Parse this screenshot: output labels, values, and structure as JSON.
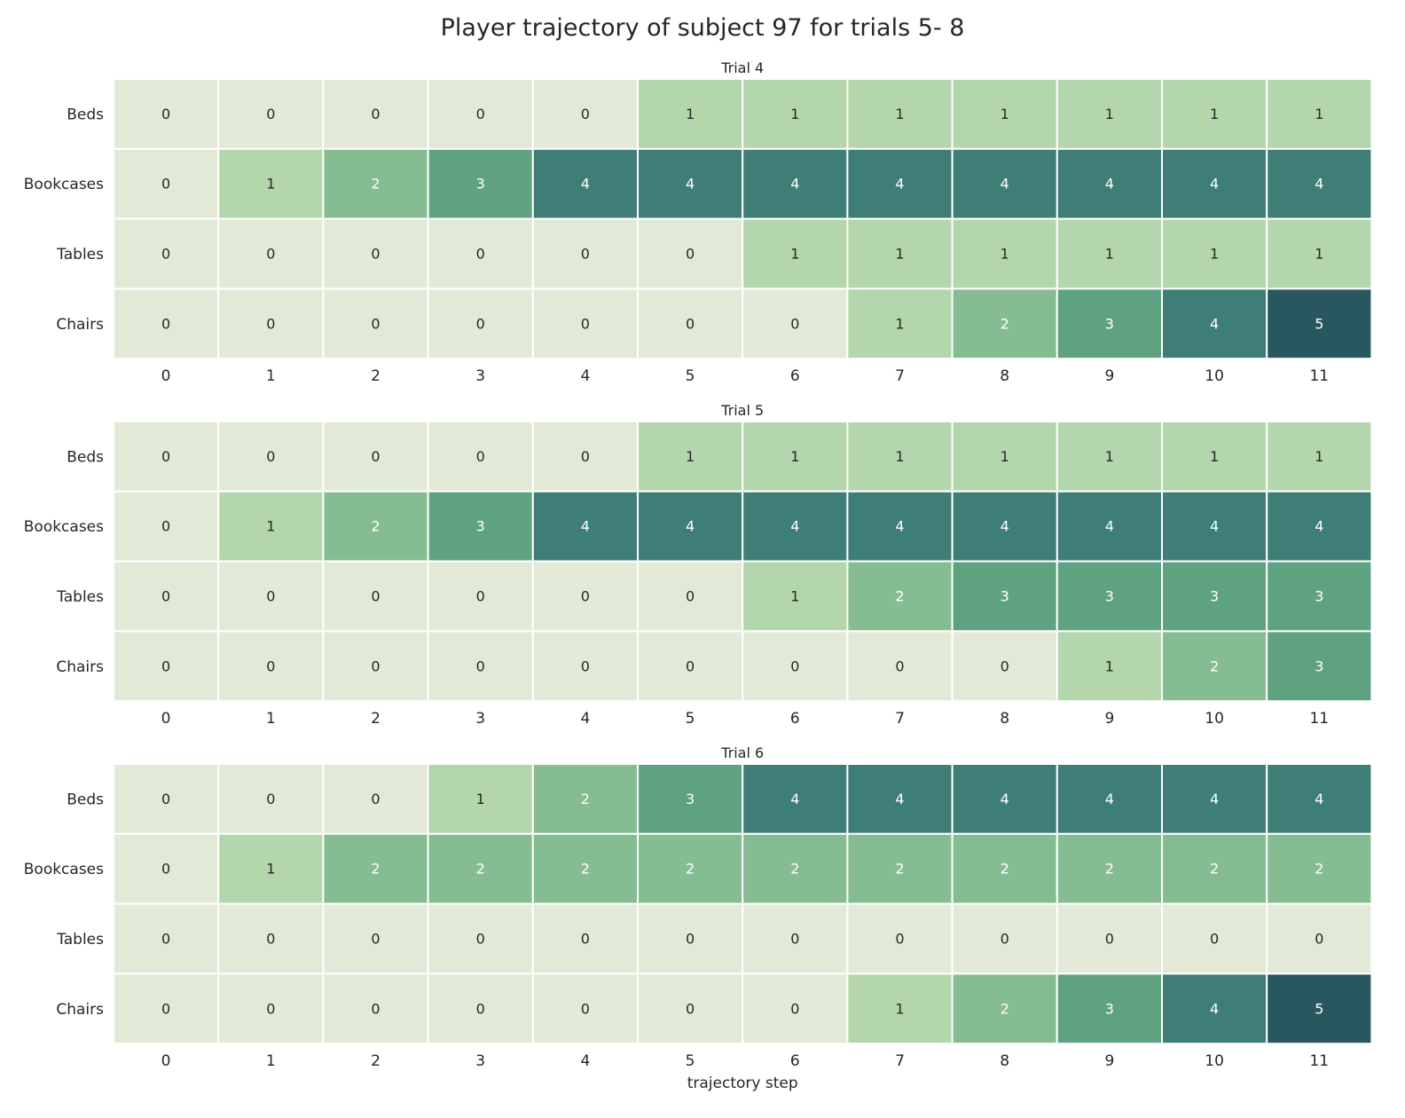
{
  "title": "Player trajectory of subject 97 for trials 5- 8",
  "colors": {
    "scale": [
      "#e2ead7",
      "#b4d6ac",
      "#86bc91",
      "#5ea282",
      "#3f7e77",
      "#29575f"
    ],
    "cell_border": "#ffffff",
    "text_dark": "#262626",
    "text_light": "#ffffff"
  },
  "chart_data": [
    {
      "type": "heatmap",
      "title": "Trial 4",
      "rows": [
        "Beds",
        "Bookcases",
        "Tables",
        "Chairs"
      ],
      "columns": [
        "0",
        "1",
        "2",
        "3",
        "4",
        "5",
        "6",
        "7",
        "8",
        "9",
        "10",
        "11"
      ],
      "values": [
        [
          0,
          0,
          0,
          0,
          0,
          1,
          1,
          1,
          1,
          1,
          1,
          1
        ],
        [
          0,
          1,
          2,
          3,
          4,
          4,
          4,
          4,
          4,
          4,
          4,
          4
        ],
        [
          0,
          0,
          0,
          0,
          0,
          0,
          1,
          1,
          1,
          1,
          1,
          1
        ],
        [
          0,
          0,
          0,
          0,
          0,
          0,
          0,
          1,
          2,
          3,
          4,
          5
        ]
      ],
      "xlabel": "",
      "ylabel": "",
      "annotated": true,
      "colorbar": false
    },
    {
      "type": "heatmap",
      "title": "Trial 5",
      "rows": [
        "Beds",
        "Bookcases",
        "Tables",
        "Chairs"
      ],
      "columns": [
        "0",
        "1",
        "2",
        "3",
        "4",
        "5",
        "6",
        "7",
        "8",
        "9",
        "10",
        "11"
      ],
      "values": [
        [
          0,
          0,
          0,
          0,
          0,
          1,
          1,
          1,
          1,
          1,
          1,
          1
        ],
        [
          0,
          1,
          2,
          3,
          4,
          4,
          4,
          4,
          4,
          4,
          4,
          4
        ],
        [
          0,
          0,
          0,
          0,
          0,
          0,
          1,
          2,
          3,
          3,
          3,
          3
        ],
        [
          0,
          0,
          0,
          0,
          0,
          0,
          0,
          0,
          0,
          1,
          2,
          3
        ]
      ],
      "xlabel": "",
      "ylabel": "",
      "annotated": true,
      "colorbar": false
    },
    {
      "type": "heatmap",
      "title": "Trial 6",
      "rows": [
        "Beds",
        "Bookcases",
        "Tables",
        "Chairs"
      ],
      "columns": [
        "0",
        "1",
        "2",
        "3",
        "4",
        "5",
        "6",
        "7",
        "8",
        "9",
        "10",
        "11"
      ],
      "values": [
        [
          0,
          0,
          0,
          1,
          2,
          3,
          4,
          4,
          4,
          4,
          4,
          4
        ],
        [
          0,
          1,
          2,
          2,
          2,
          2,
          2,
          2,
          2,
          2,
          2,
          2
        ],
        [
          0,
          0,
          0,
          0,
          0,
          0,
          0,
          0,
          0,
          0,
          0,
          0
        ],
        [
          0,
          0,
          0,
          0,
          0,
          0,
          0,
          1,
          2,
          3,
          4,
          5
        ]
      ],
      "xlabel": "trajectory step",
      "ylabel": "",
      "annotated": true,
      "colorbar": false
    }
  ]
}
